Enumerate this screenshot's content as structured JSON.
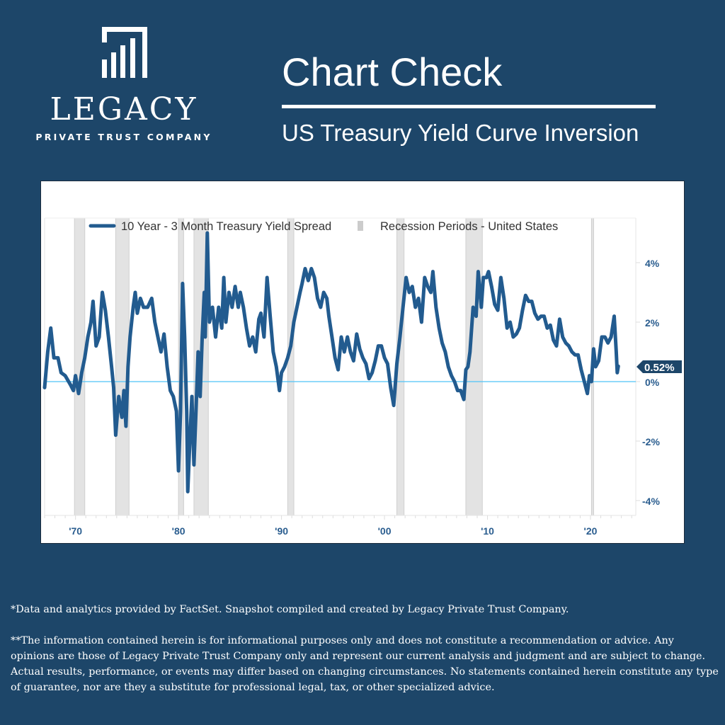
{
  "logo": {
    "word": "LEGACY",
    "subtitle": "PRIVATE TRUST COMPANY",
    "icon": "bar-chart-icon"
  },
  "header": {
    "title": "Chart Check",
    "subtitle": "US Treasury Yield Curve Inversion"
  },
  "colors": {
    "background": "#1d4669",
    "series": "#225b8f",
    "recession": "#e3e3e3",
    "zero_line": "#4fc3f7",
    "tick_label": "#2a5d8f",
    "callout": "#1d4669"
  },
  "chart_data": {
    "type": "line",
    "title": "",
    "xlabel": "",
    "ylabel": "",
    "xlim": [
      1967.0,
      2024.4
    ],
    "ylim": [
      -4.5,
      5.5
    ],
    "x_ticks": [
      {
        "value": 1970,
        "label": "'70"
      },
      {
        "value": 1980,
        "label": "'80"
      },
      {
        "value": 1990,
        "label": "'90"
      },
      {
        "value": 2000,
        "label": "'00"
      },
      {
        "value": 2010,
        "label": "'10"
      },
      {
        "value": 2020,
        "label": "'20"
      }
    ],
    "y_ticks": [
      {
        "value": 4,
        "label": "4%"
      },
      {
        "value": 2,
        "label": "2%"
      },
      {
        "value": 0,
        "label": "0%"
      },
      {
        "value": -2,
        "label": "-2%"
      },
      {
        "value": -4,
        "label": "-4%"
      }
    ],
    "legend": {
      "placement": "top",
      "entries": [
        "10 Year - 3 Month Treasury Yield Spread",
        "Recession Periods - United States"
      ]
    },
    "last_value_label": "0.52%",
    "last_value": 0.52,
    "recessions": [
      [
        1969.9,
        1970.9
      ],
      [
        1973.9,
        1975.2
      ],
      [
        1980.0,
        1980.5
      ],
      [
        1981.5,
        1982.9
      ],
      [
        1990.6,
        1991.2
      ],
      [
        2001.2,
        2001.9
      ],
      [
        2007.9,
        2009.5
      ],
      [
        2020.1,
        2020.3
      ]
    ],
    "series": [
      {
        "name": "10 Year - 3 Month Treasury Yield Spread",
        "points": [
          [
            1967.0,
            -0.2
          ],
          [
            1967.3,
            1.0
          ],
          [
            1967.6,
            1.8
          ],
          [
            1967.9,
            0.8
          ],
          [
            1968.3,
            0.8
          ],
          [
            1968.6,
            0.3
          ],
          [
            1969.0,
            0.2
          ],
          [
            1969.5,
            -0.1
          ],
          [
            1969.8,
            -0.3
          ],
          [
            1970.0,
            0.2
          ],
          [
            1970.3,
            -0.4
          ],
          [
            1970.6,
            0.3
          ],
          [
            1970.9,
            0.8
          ],
          [
            1971.2,
            1.5
          ],
          [
            1971.5,
            2.0
          ],
          [
            1971.7,
            2.7
          ],
          [
            1972.0,
            1.2
          ],
          [
            1972.3,
            1.5
          ],
          [
            1972.6,
            3.0
          ],
          [
            1972.9,
            2.4
          ],
          [
            1973.2,
            1.5
          ],
          [
            1973.5,
            0.5
          ],
          [
            1973.7,
            -0.2
          ],
          [
            1973.9,
            -1.8
          ],
          [
            1974.2,
            -0.5
          ],
          [
            1974.5,
            -1.2
          ],
          [
            1974.7,
            -0.3
          ],
          [
            1974.9,
            -1.5
          ],
          [
            1975.1,
            0.5
          ],
          [
            1975.3,
            1.5
          ],
          [
            1975.6,
            2.5
          ],
          [
            1975.8,
            3.0
          ],
          [
            1976.0,
            2.3
          ],
          [
            1976.3,
            2.8
          ],
          [
            1976.6,
            2.5
          ],
          [
            1977.0,
            2.5
          ],
          [
            1977.4,
            2.8
          ],
          [
            1977.7,
            2.0
          ],
          [
            1978.0,
            1.5
          ],
          [
            1978.3,
            1.0
          ],
          [
            1978.6,
            1.6
          ],
          [
            1978.9,
            0.5
          ],
          [
            1979.2,
            -0.3
          ],
          [
            1979.5,
            -0.5
          ],
          [
            1979.8,
            -1.0
          ],
          [
            1980.0,
            -3.0
          ],
          [
            1980.2,
            -1.0
          ],
          [
            1980.4,
            3.3
          ],
          [
            1980.6,
            1.5
          ],
          [
            1980.8,
            -1.0
          ],
          [
            1980.9,
            -3.7
          ],
          [
            1981.1,
            -2.0
          ],
          [
            1981.3,
            -0.5
          ],
          [
            1981.5,
            -2.8
          ],
          [
            1981.7,
            -1.0
          ],
          [
            1981.9,
            1.0
          ],
          [
            1982.1,
            -0.5
          ],
          [
            1982.3,
            1.5
          ],
          [
            1982.5,
            3.0
          ],
          [
            1982.6,
            1.5
          ],
          [
            1982.8,
            5.0
          ],
          [
            1983.0,
            2.0
          ],
          [
            1983.3,
            2.5
          ],
          [
            1983.6,
            1.5
          ],
          [
            1983.9,
            2.5
          ],
          [
            1984.2,
            1.8
          ],
          [
            1984.4,
            3.5
          ],
          [
            1984.6,
            2.0
          ],
          [
            1984.9,
            3.0
          ],
          [
            1985.2,
            2.5
          ],
          [
            1985.5,
            3.2
          ],
          [
            1985.8,
            2.5
          ],
          [
            1986.0,
            3.0
          ],
          [
            1986.3,
            2.5
          ],
          [
            1986.6,
            1.8
          ],
          [
            1986.9,
            1.2
          ],
          [
            1987.2,
            1.5
          ],
          [
            1987.5,
            1.0
          ],
          [
            1987.8,
            2.1
          ],
          [
            1988.0,
            2.3
          ],
          [
            1988.3,
            1.5
          ],
          [
            1988.6,
            3.5
          ],
          [
            1988.9,
            2.2
          ],
          [
            1989.2,
            1.0
          ],
          [
            1989.5,
            0.5
          ],
          [
            1989.8,
            -0.3
          ],
          [
            1990.0,
            0.3
          ],
          [
            1990.3,
            0.5
          ],
          [
            1990.6,
            0.8
          ],
          [
            1990.9,
            1.2
          ],
          [
            1991.2,
            2.0
          ],
          [
            1991.5,
            2.5
          ],
          [
            1991.8,
            3.0
          ],
          [
            1992.0,
            3.3
          ],
          [
            1992.3,
            3.8
          ],
          [
            1992.6,
            3.4
          ],
          [
            1992.9,
            3.8
          ],
          [
            1993.2,
            3.5
          ],
          [
            1993.5,
            2.8
          ],
          [
            1993.8,
            2.5
          ],
          [
            1994.1,
            3.0
          ],
          [
            1994.4,
            2.8
          ],
          [
            1994.6,
            2.2
          ],
          [
            1994.9,
            1.5
          ],
          [
            1995.2,
            0.8
          ],
          [
            1995.5,
            0.4
          ],
          [
            1995.8,
            1.5
          ],
          [
            1996.1,
            1.0
          ],
          [
            1996.4,
            1.5
          ],
          [
            1996.7,
            1.0
          ],
          [
            1997.0,
            0.7
          ],
          [
            1997.3,
            1.6
          ],
          [
            1997.6,
            1.1
          ],
          [
            1997.9,
            0.8
          ],
          [
            1998.2,
            0.6
          ],
          [
            1998.5,
            0.1
          ],
          [
            1998.8,
            0.3
          ],
          [
            1999.1,
            0.7
          ],
          [
            1999.4,
            1.2
          ],
          [
            1999.7,
            1.2
          ],
          [
            2000.0,
            0.8
          ],
          [
            2000.3,
            0.6
          ],
          [
            2000.6,
            -0.2
          ],
          [
            2000.9,
            -0.8
          ],
          [
            2001.2,
            0.6
          ],
          [
            2001.5,
            1.5
          ],
          [
            2001.8,
            2.5
          ],
          [
            2002.1,
            3.5
          ],
          [
            2002.4,
            3.0
          ],
          [
            2002.7,
            3.2
          ],
          [
            2003.0,
            2.5
          ],
          [
            2003.3,
            2.8
          ],
          [
            2003.6,
            2.0
          ],
          [
            2003.9,
            3.5
          ],
          [
            2004.2,
            3.2
          ],
          [
            2004.5,
            3.0
          ],
          [
            2004.7,
            3.7
          ],
          [
            2005.0,
            2.5
          ],
          [
            2005.3,
            1.8
          ],
          [
            2005.6,
            1.3
          ],
          [
            2005.9,
            1.0
          ],
          [
            2006.2,
            0.5
          ],
          [
            2006.5,
            0.2
          ],
          [
            2006.8,
            0.0
          ],
          [
            2007.1,
            -0.3
          ],
          [
            2007.4,
            -0.3
          ],
          [
            2007.7,
            -0.6
          ],
          [
            2007.9,
            0.4
          ],
          [
            2008.1,
            0.5
          ],
          [
            2008.3,
            1.0
          ],
          [
            2008.6,
            2.5
          ],
          [
            2008.9,
            2.2
          ],
          [
            2009.1,
            3.7
          ],
          [
            2009.4,
            2.5
          ],
          [
            2009.6,
            3.5
          ],
          [
            2009.9,
            3.5
          ],
          [
            2010.1,
            3.7
          ],
          [
            2010.4,
            3.2
          ],
          [
            2010.7,
            2.6
          ],
          [
            2011.0,
            2.4
          ],
          [
            2011.3,
            3.5
          ],
          [
            2011.6,
            2.8
          ],
          [
            2011.9,
            1.8
          ],
          [
            2012.2,
            2.0
          ],
          [
            2012.5,
            1.5
          ],
          [
            2012.8,
            1.6
          ],
          [
            2013.1,
            1.8
          ],
          [
            2013.4,
            2.4
          ],
          [
            2013.7,
            2.9
          ],
          [
            2014.0,
            2.7
          ],
          [
            2014.3,
            2.7
          ],
          [
            2014.6,
            2.3
          ],
          [
            2014.9,
            2.1
          ],
          [
            2015.2,
            2.2
          ],
          [
            2015.5,
            2.2
          ],
          [
            2015.8,
            1.8
          ],
          [
            2016.1,
            1.9
          ],
          [
            2016.4,
            1.4
          ],
          [
            2016.7,
            1.2
          ],
          [
            2017.0,
            2.1
          ],
          [
            2017.3,
            1.5
          ],
          [
            2017.6,
            1.3
          ],
          [
            2017.9,
            1.2
          ],
          [
            2018.2,
            1.0
          ],
          [
            2018.5,
            0.9
          ],
          [
            2018.8,
            0.9
          ],
          [
            2019.1,
            0.4
          ],
          [
            2019.4,
            0.0
          ],
          [
            2019.7,
            -0.4
          ],
          [
            2019.9,
            0.2
          ],
          [
            2020.1,
            0.0
          ],
          [
            2020.3,
            1.1
          ],
          [
            2020.5,
            0.5
          ],
          [
            2020.8,
            0.7
          ],
          [
            2021.1,
            1.5
          ],
          [
            2021.4,
            1.5
          ],
          [
            2021.7,
            1.3
          ],
          [
            2022.0,
            1.5
          ],
          [
            2022.3,
            2.2
          ],
          [
            2022.5,
            1.0
          ],
          [
            2022.6,
            0.3
          ],
          [
            2022.7,
            0.52
          ]
        ]
      }
    ]
  },
  "disclaimers": {
    "line1": "*Data and analytics provided by FactSet. Snapshot compiled and created by Legacy Private Trust Company.",
    "line2": "**The information contained herein is for informational purposes only and does not constitute a recommendation or advice. Any opinions are those of Legacy Private Trust Company only and represent our current analysis and judgment and are subject to change. Actual results, performance, or events may differ based on changing circumstances. No statements contained herein constitute any type of guarantee, nor are they a substitute for professional legal, tax, or other specialized advice."
  }
}
